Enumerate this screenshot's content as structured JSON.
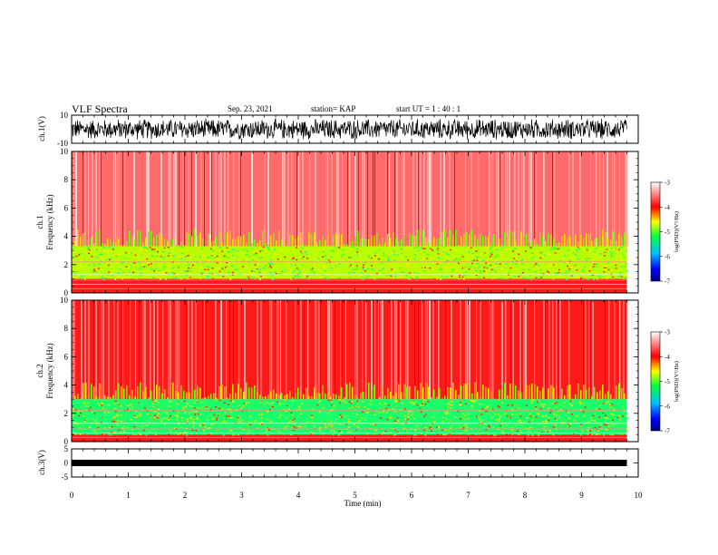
{
  "header": {
    "title": "VLF Spectra",
    "date": "Sep. 23, 2021",
    "station": "station= KAP",
    "start": "start  UT =  1 : 40 : 1"
  },
  "colors": {
    "axis": "#000000",
    "spectrogram_low": "#0000ff",
    "spectrogram_mid": "#00ff00",
    "spectrogram_high": "#ff0000",
    "background": "#ffffff"
  },
  "chart_data": [
    {
      "type": "line",
      "panel": "ch1-waveform",
      "ylabel": "ch.1(V)",
      "ylim": [
        -10,
        10
      ],
      "yticks": [
        "10",
        "-10"
      ],
      "xlim": [
        0,
        10
      ],
      "x_extent_min": 9.8,
      "value_range": [
        -8,
        8
      ],
      "description_values": "dense waveform oscillating between about -8 V and +8 V"
    },
    {
      "type": "heatmap",
      "panel": "ch1-spectrogram",
      "ylabel": "Frequency (kHz)",
      "channel_label": "ch.1",
      "xlim": [
        0,
        10
      ],
      "ylim": [
        0,
        10
      ],
      "yticks": [
        "0",
        "2",
        "4",
        "6",
        "8",
        "10"
      ],
      "x_extent_min": 9.8,
      "color_scale": {
        "label": "log(PSD)(V²/Hz)",
        "range": [
          -7,
          -3
        ],
        "ticks": [
          "-3",
          "-4",
          "-5",
          "-6",
          "-7"
        ]
      },
      "bands_khz": [
        {
          "from": 0,
          "to": 1.0,
          "level": -4.0
        },
        {
          "from": 1.0,
          "to": 3.3,
          "level": -4.9
        },
        {
          "from": 3.3,
          "to": 10,
          "level": -3.6
        }
      ]
    },
    {
      "type": "heatmap",
      "panel": "ch2-spectrogram",
      "ylabel": "Frequency (kHz)",
      "channel_label": "ch.2",
      "xlim": [
        0,
        10
      ],
      "ylim": [
        0,
        10
      ],
      "yticks": [
        "0",
        "2",
        "4",
        "6",
        "8",
        "10"
      ],
      "x_extent_min": 9.8,
      "color_scale": {
        "label": "log(PSD)(V²/Hz)",
        "range": [
          -7,
          -3
        ],
        "ticks": [
          "-3",
          "-4",
          "-5",
          "-6",
          "-7"
        ]
      },
      "bands_khz": [
        {
          "from": 0,
          "to": 0.5,
          "level": -4.0
        },
        {
          "from": 0.5,
          "to": 3.0,
          "level": -5.0
        },
        {
          "from": 3.0,
          "to": 10,
          "level": -3.8
        }
      ]
    },
    {
      "type": "line",
      "panel": "ch3-waveform",
      "ylabel": "ch.3(V)",
      "ylim": [
        -5,
        5
      ],
      "yticks": [
        "5",
        "0",
        "-5"
      ],
      "xlim": [
        0,
        10
      ],
      "x_extent_min": 9.8,
      "value_range": [
        -0.5,
        0.5
      ]
    }
  ],
  "xaxis": {
    "label": "Time (min)",
    "ticks": [
      "0",
      "1",
      "2",
      "3",
      "4",
      "5",
      "6",
      "7",
      "8",
      "9",
      "10"
    ]
  }
}
